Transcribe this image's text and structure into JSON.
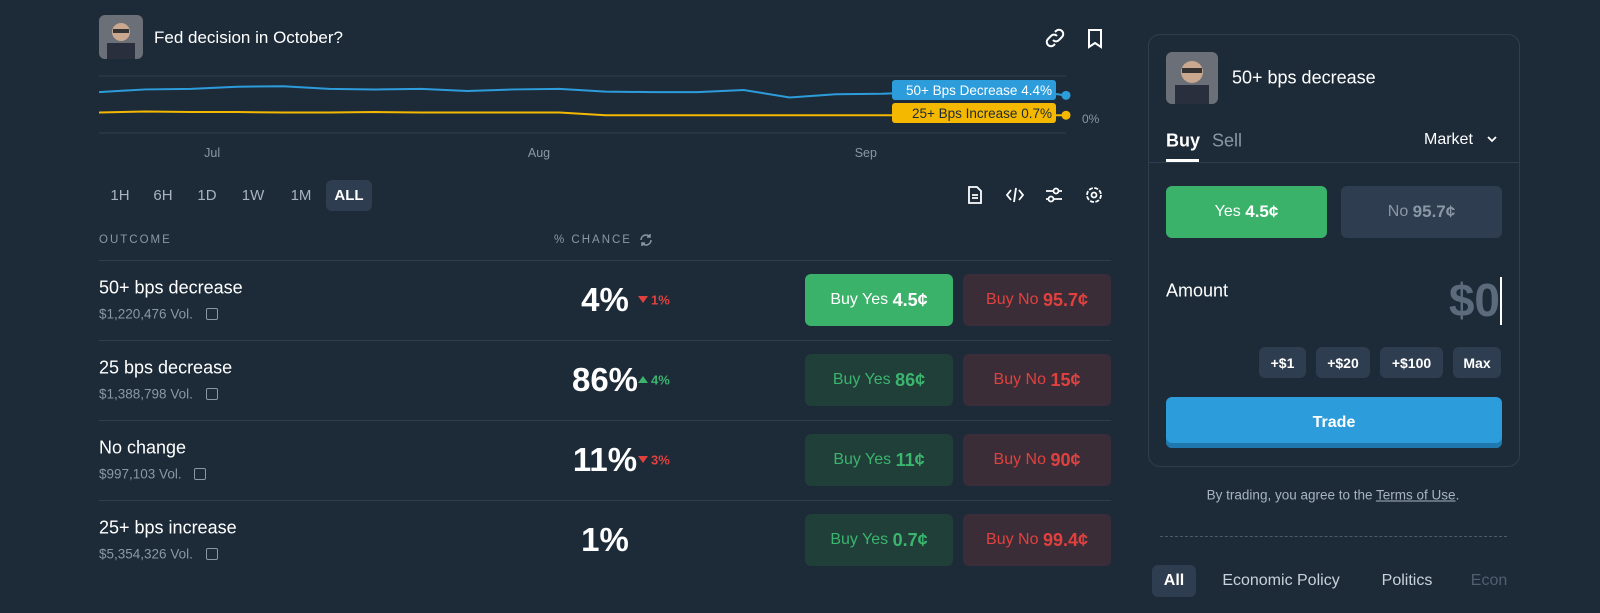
{
  "header": {
    "title": "Fed decision in October?"
  },
  "chart": {
    "type": "line",
    "xticks": [
      "Jul",
      "Aug",
      "Sep"
    ],
    "ylim": [
      0,
      8
    ],
    "yticks": [
      {
        "value": 0,
        "label": "0%"
      }
    ],
    "series": [
      {
        "name": "50+ Bps Decrease",
        "color": "#2d9cdb",
        "values": [
          5,
          5.5,
          5.6,
          6,
          6.1,
          5.6,
          5.5,
          5.6,
          5.2,
          5.5,
          5.6,
          5.1,
          5,
          5,
          5.4,
          4,
          4.6,
          4.7,
          5,
          5.1,
          5.5,
          4.4
        ],
        "value_labels": [
          null,
          null,
          null,
          null,
          null,
          null,
          null,
          null,
          null,
          null,
          null,
          null,
          null,
          null,
          null,
          null,
          null,
          null,
          null,
          null,
          null,
          "4.4%"
        ]
      },
      {
        "name": "25+ Bps Increase",
        "color": "#f5b800",
        "values": [
          1.2,
          1.4,
          1.3,
          1.3,
          1.2,
          1.2,
          1.3,
          1.2,
          1.2,
          1.2,
          1.2,
          0.7,
          0.7,
          0.7,
          0.7,
          0.7,
          0.7,
          0.7,
          0.7,
          0.7,
          0.7,
          0.7
        ],
        "value_labels": [
          null,
          null,
          null,
          null,
          null,
          null,
          null,
          null,
          null,
          null,
          null,
          null,
          null,
          null,
          null,
          null,
          null,
          null,
          null,
          null,
          null,
          "0.7%"
        ]
      }
    ]
  },
  "ranges": [
    "1H",
    "6H",
    "1D",
    "1W",
    "1M",
    "ALL"
  ],
  "active_range": 5,
  "table": {
    "headers": [
      "OUTCOME",
      "% CHANCE"
    ],
    "rows": [
      {
        "name": "50+ bps decrease",
        "volume": "$1,220,476 Vol.",
        "chance": "4%",
        "change": "1%",
        "change_dir": "down",
        "yes_label": "Buy Yes",
        "yes_price": "4.5¢",
        "no_label": "Buy No",
        "no_price": "95.7¢",
        "selected": true
      },
      {
        "name": "25 bps decrease",
        "volume": "$1,388,798 Vol.",
        "chance": "86%",
        "change": "4%",
        "change_dir": "up",
        "yes_label": "Buy Yes",
        "yes_price": "86¢",
        "no_label": "Buy No",
        "no_price": "15¢",
        "selected": false
      },
      {
        "name": "No change",
        "volume": "$997,103 Vol.",
        "chance": "11%",
        "change": "3%",
        "change_dir": "down",
        "yes_label": "Buy Yes",
        "yes_price": "11¢",
        "no_label": "Buy No",
        "no_price": "90¢",
        "selected": false
      },
      {
        "name": "25+ bps increase",
        "volume": "$5,354,326 Vol.",
        "chance": "1%",
        "change": null,
        "change_dir": null,
        "yes_label": "Buy Yes",
        "yes_price": "0.7¢",
        "no_label": "Buy No",
        "no_price": "99.4¢",
        "selected": false
      }
    ]
  },
  "trade": {
    "title": "50+ bps decrease",
    "tabs": [
      "Buy",
      "Sell"
    ],
    "order_type": "Market",
    "yes_label": "Yes",
    "yes_price": "4.5¢",
    "no_label": "No",
    "no_price": "95.7¢",
    "amount_label": "Amount",
    "amount": "$0",
    "quick": [
      "+$1",
      "+$20",
      "+$100",
      "Max"
    ],
    "button": "Trade",
    "disclaimer": "By trading, you agree to the",
    "terms": "Terms of Use",
    "period": "."
  },
  "tags": [
    "All",
    "Economic Policy",
    "Politics",
    "Econ"
  ]
}
